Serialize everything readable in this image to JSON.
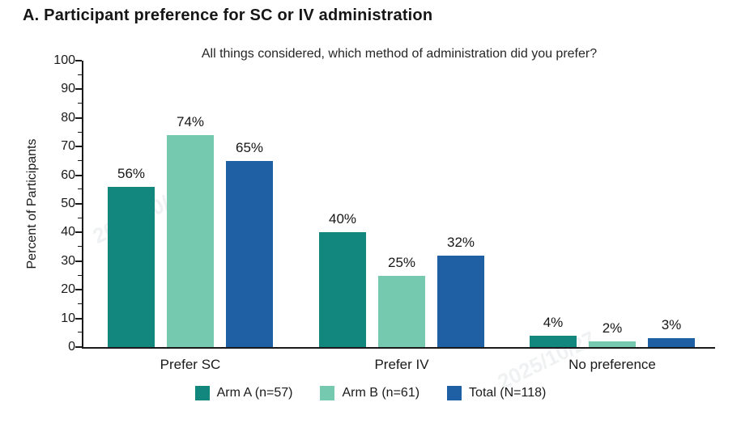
{
  "header": {
    "title": "A. Participant preference for SC or IV administration"
  },
  "watermark": {
    "text": "2025/10/27"
  },
  "chart_data": {
    "type": "bar",
    "title": "All things considered, which method of administration did you prefer?",
    "xlabel": "",
    "ylabel": "Percent of Participants",
    "ylim": [
      0,
      100
    ],
    "ytick_step": 10,
    "minor_tick_step": 5,
    "grid": false,
    "legend_position": "bottom",
    "value_label_format": "{v}%",
    "categories": [
      "Prefer SC",
      "Prefer IV",
      "No preference"
    ],
    "series": [
      {
        "name": "Arm A (n=57)",
        "color": "#12877d",
        "values": [
          56,
          40,
          4
        ]
      },
      {
        "name": "Arm B (n=61)",
        "color": "#74c9ae",
        "values": [
          74,
          25,
          2
        ]
      },
      {
        "name": "Total (N=118)",
        "color": "#1f5fa4",
        "values": [
          65,
          32,
          3
        ]
      }
    ],
    "axis_color": "#1a1a1a"
  }
}
